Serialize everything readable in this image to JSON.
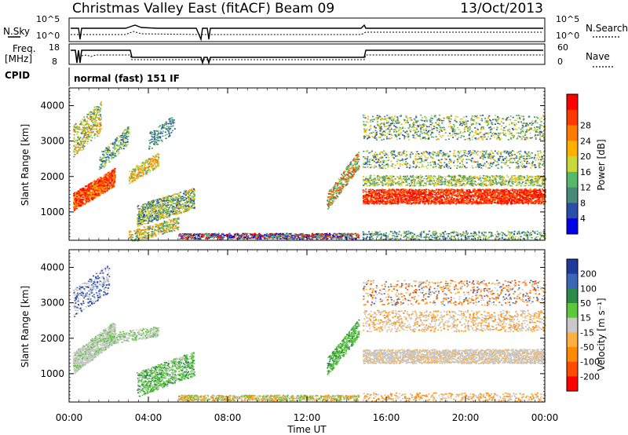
{
  "header": {
    "title": "Christmas Valley East (fitACF)",
    "beam": "Beam 09",
    "date": "13/Oct/2013",
    "cpid_label": "CPID",
    "cpid_value": "normal (fast) 151 IF"
  },
  "panels": {
    "nsky_label": "N.Sky",
    "nsearch_label": "N.Search",
    "freq_label_line1": "Freq.",
    "freq_label_line2": "[MHz]",
    "nave_label": "Nave",
    "nsky_ticks": [
      "10^5",
      "10^0"
    ],
    "nsearch_ticks": [
      "10^5",
      "10^0"
    ],
    "freq_ticks": [
      "18",
      "8"
    ],
    "nave_ticks": [
      "60",
      "0"
    ]
  },
  "chart_data": [
    {
      "type": "heatmap",
      "name": "power",
      "ylabel": "Slant Range [km]",
      "xlabel": "",
      "ylim": [
        200,
        4500
      ],
      "yticks": [
        1000,
        2000,
        3000,
        4000
      ],
      "xticks": [
        "00:00",
        "04:00",
        "08:00",
        "12:00",
        "16:00",
        "20:00",
        "00:00"
      ],
      "colorbar": {
        "label": "Power [dB]",
        "ticks": [
          4,
          8,
          12,
          16,
          20,
          24,
          28
        ],
        "colors": [
          "#0000e6",
          "#2a4ea8",
          "#4a8a78",
          "#58b86a",
          "#c8d838",
          "#ffb000",
          "#ff7a00",
          "#ff3a00",
          "#ff0000"
        ]
      }
    },
    {
      "type": "heatmap",
      "name": "velocity",
      "ylabel": "Slant Range [km]",
      "xlabel": "Time UT",
      "ylim": [
        200,
        4500
      ],
      "yticks": [
        1000,
        2000,
        3000,
        4000
      ],
      "xticks": [
        "00:00",
        "04:00",
        "08:00",
        "12:00",
        "16:00",
        "20:00",
        "00:00"
      ],
      "colorbar": {
        "label": "Velocity [m s⁻¹]",
        "ticks": [
          200,
          100,
          50,
          15,
          -15,
          -50,
          -100,
          -200
        ],
        "colors": [
          "#1f3a9a",
          "#3a66b8",
          "#2e8a4a",
          "#5cc83a",
          "#c8c8c8",
          "#ffb040",
          "#ff8a00",
          "#ff4a00",
          "#ff0000"
        ]
      }
    }
  ]
}
